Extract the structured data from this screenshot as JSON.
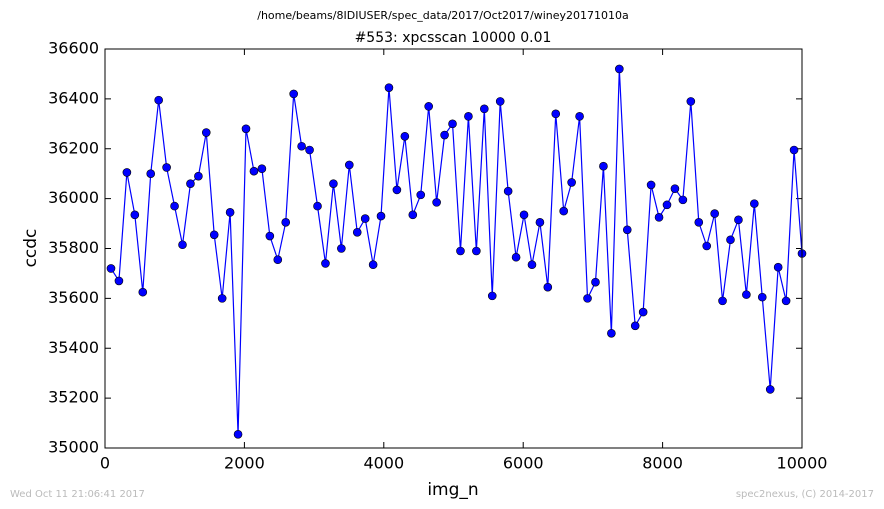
{
  "chart_data": {
    "type": "line",
    "suptitle": "/home/beams/8IDIUSER/spec_data/2017/Oct2017/winey20171010a",
    "title": "#553: xpcsscan 10000 0.01",
    "xlabel": "img_n",
    "ylabel": "ccdc",
    "color": "#0000ff",
    "x": [
      86,
      200,
      314,
      428,
      542,
      656,
      770,
      884,
      998,
      1112,
      1226,
      1340,
      1453,
      1567,
      1681,
      1795,
      1909,
      2023,
      2137,
      2251,
      2365,
      2479,
      2593,
      2707,
      2821,
      2935,
      3049,
      3163,
      3277,
      3391,
      3505,
      3619,
      3733,
      3847,
      3960,
      4074,
      4188,
      4302,
      4416,
      4530,
      4644,
      4758,
      4872,
      4986,
      5100,
      5214,
      5328,
      5442,
      5556,
      5670,
      5784,
      5898,
      6012,
      6126,
      6240,
      6353,
      6467,
      6581,
      6695,
      6809,
      6923,
      7037,
      7151,
      7265,
      7379,
      7493,
      7607,
      7721,
      7835,
      7949,
      8063,
      8177,
      8291,
      8405,
      8519,
      8633,
      8747,
      8860,
      8974,
      9088,
      9202,
      9316,
      9430,
      9544,
      9658,
      9772,
      9886,
      10000
    ],
    "values": [
      35720,
      35670,
      36105,
      35935,
      35625,
      36100,
      36395,
      36125,
      35970,
      35815,
      36060,
      36090,
      36265,
      35855,
      35600,
      35945,
      35055,
      36280,
      36110,
      36120,
      35850,
      35755,
      35905,
      36420,
      36210,
      36195,
      35970,
      35740,
      36060,
      35800,
      36135,
      35865,
      35920,
      35735,
      35930,
      36445,
      36035,
      36250,
      35935,
      36015,
      36370,
      35985,
      36255,
      36300,
      35790,
      36330,
      35790,
      36360,
      35610,
      36390,
      36030,
      35765,
      35935,
      35735,
      35905,
      35645,
      36340,
      35950,
      36065,
      36330,
      35600,
      35665,
      36130,
      35460,
      36520,
      35875,
      35490,
      35545,
      36055,
      35925,
      35975,
      36040,
      35995,
      36390,
      35905,
      35810,
      35940,
      35590,
      35835,
      35915,
      35615,
      35980,
      35605,
      35235,
      35725,
      35590,
      36195,
      35780
    ],
    "xlim": [
      0,
      10000
    ],
    "xticks": [
      0,
      2000,
      4000,
      6000,
      8000,
      10000
    ],
    "ylim": [
      35000,
      36600
    ],
    "yticks": [
      35000,
      35200,
      35400,
      35600,
      35800,
      36000,
      36200,
      36400,
      36600
    ],
    "footer_left": "Wed Oct 11 21:06:41 2017",
    "footer_right": "spec2nexus, (C) 2014-2017"
  }
}
